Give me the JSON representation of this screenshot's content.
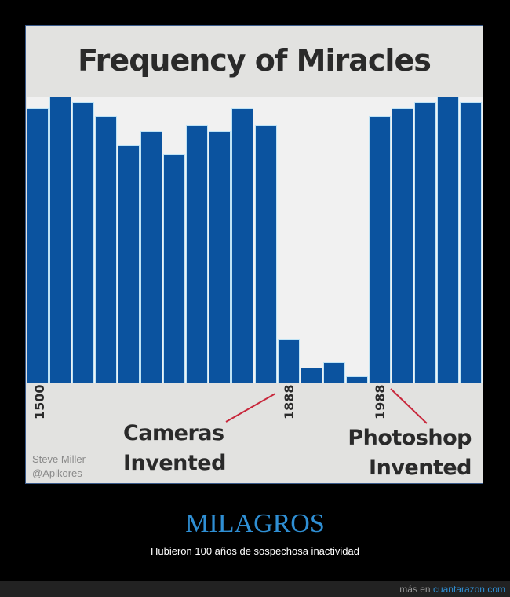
{
  "chart_data": {
    "type": "bar",
    "title": "Frequency of Miracles",
    "xlabel": "",
    "ylabel": "",
    "x_tick_labels": [
      {
        "label": "1500",
        "bar_index": 0
      },
      {
        "label": "1888",
        "bar_index": 11
      },
      {
        "label": "1988",
        "bar_index": 15
      }
    ],
    "categories": [
      "1500",
      "",
      "",
      "",
      "",
      "",
      "",
      "",
      "",
      "",
      "",
      "1888",
      "",
      "",
      "",
      "1988",
      "",
      "",
      "",
      ""
    ],
    "values": [
      96,
      100,
      98,
      93,
      83,
      88,
      80,
      90,
      88,
      96,
      90,
      15,
      5,
      7,
      2,
      93,
      96,
      98,
      100,
      98
    ],
    "ylim": [
      0,
      100
    ],
    "grid": false,
    "legend": null,
    "annotations": [
      {
        "text": "Cameras Invented",
        "points_to": "1888"
      },
      {
        "text": "Photoshop Invented",
        "points_to": "1988"
      }
    ],
    "colors": {
      "bar": "#0b539f",
      "plot_bg": "#f1f1f1",
      "frame_bg": "#e2e2e0",
      "annotation_line": "#c8283c"
    }
  },
  "chart": {
    "title": "Frequency of Miracles",
    "ticks": {
      "t1500": "1500",
      "t1888": "1888",
      "t1988": "1988"
    },
    "annotation_cameras": [
      "Cameras",
      "Invented"
    ],
    "annotation_photoshop": [
      "Photoshop",
      "Invented"
    ],
    "credit": [
      "Steve Miller",
      "@Apikores"
    ]
  },
  "caption": {
    "title": "MILAGROS",
    "subtitle": "Hubieron 100 años de sospechosa inactividad"
  },
  "footer": {
    "prefix": "más en",
    "site": "cuantarazon.com"
  }
}
